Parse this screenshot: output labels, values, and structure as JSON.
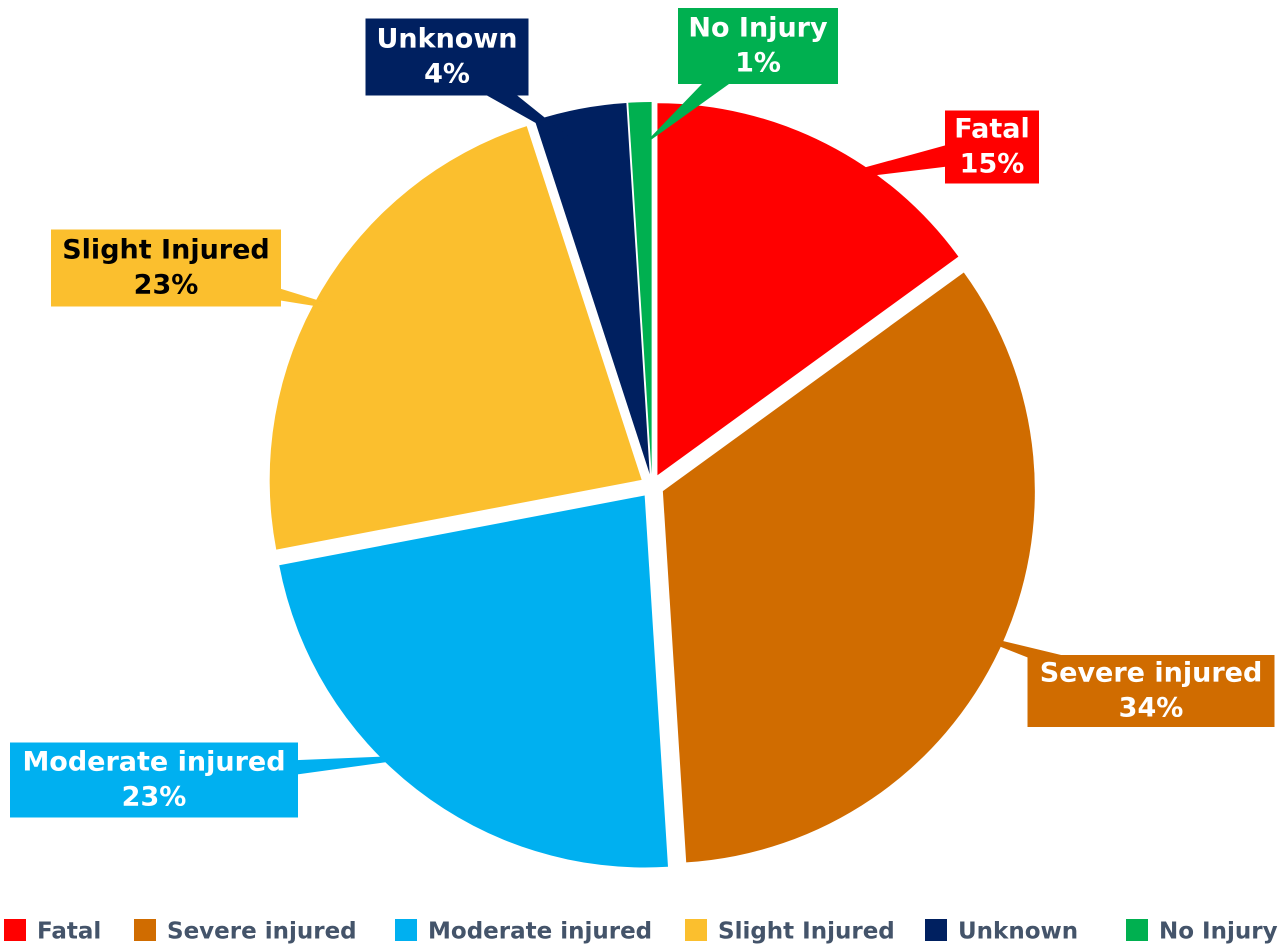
{
  "chart_data": {
    "type": "pie",
    "categories": [
      "Fatal",
      "Severe injured",
      "Moderate injured",
      "Slight Injured",
      "Unknown",
      "No Injury"
    ],
    "values": [
      15,
      34,
      23,
      23,
      4,
      1
    ],
    "value_labels": [
      "15%",
      "34%",
      "23%",
      "23%",
      "4%",
      "1%"
    ],
    "colors": [
      "#ff0000",
      "#d06c00",
      "#00b0f0",
      "#fbbf2e",
      "#002060",
      "#00b050"
    ],
    "legend": "bottom"
  }
}
